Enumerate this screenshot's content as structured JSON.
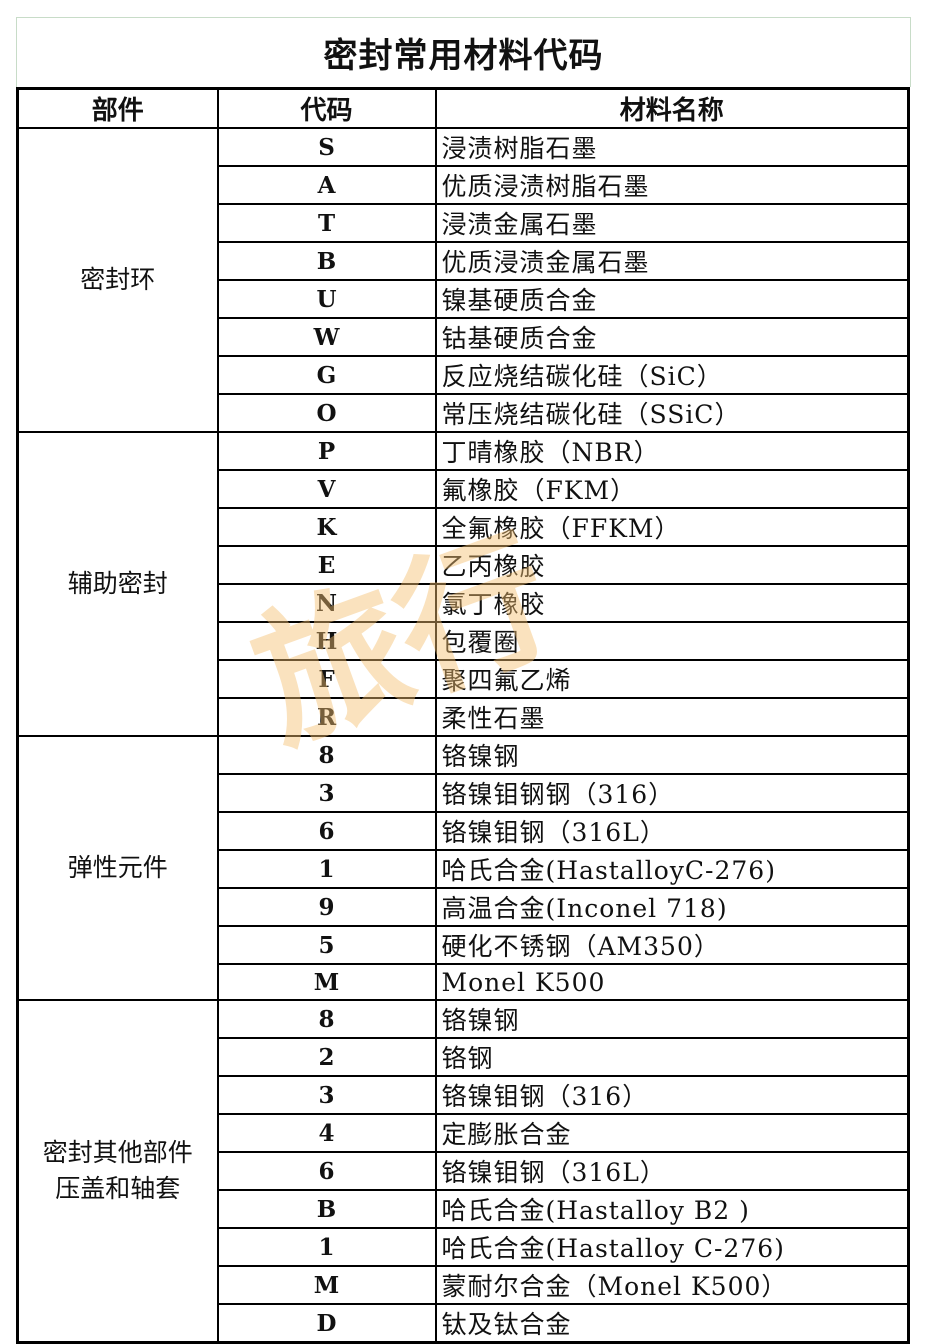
{
  "title": "密封常用材料代码",
  "headers": [
    "部件",
    "代码",
    "材料名称"
  ],
  "groups": [
    {
      "part": "密封环",
      "rows": [
        [
          "S",
          "浸渍树脂石墨"
        ],
        [
          "A",
          "优质浸渍树脂石墨"
        ],
        [
          "T",
          "浸渍金属石墨"
        ],
        [
          "B",
          "优质浸渍金属石墨"
        ],
        [
          "U",
          "镍基硬质合金"
        ],
        [
          "W",
          "钴基硬质合金"
        ],
        [
          "G",
          "反应烧结碳化硅（SiC）"
        ],
        [
          "O",
          "常压烧结碳化硅（SSiC）"
        ]
      ]
    },
    {
      "part": "辅助密封",
      "rows": [
        [
          "P",
          "丁晴橡胶（NBR）"
        ],
        [
          "V",
          "氟橡胶（FKM）"
        ],
        [
          "K",
          "全氟橡胶（FFKM）"
        ],
        [
          "E",
          "乙丙橡胶"
        ],
        [
          "N",
          "氯丁橡胶"
        ],
        [
          "H",
          "包覆圈"
        ],
        [
          "F",
          "聚四氟乙烯"
        ],
        [
          "R",
          "柔性石墨"
        ]
      ]
    },
    {
      "part": "弹性元件",
      "rows": [
        [
          "8",
          "铬镍钢"
        ],
        [
          "3",
          "铬镍钼钢钢（316）"
        ],
        [
          "6",
          "铬镍钼钢（316L）"
        ],
        [
          "1",
          "哈氏合金(HastalloyC-276)"
        ],
        [
          "9",
          "高温合金(Inconel 718)"
        ],
        [
          "5",
          "硬化不锈钢（AM350）"
        ],
        [
          "M",
          "Monel K500"
        ]
      ]
    },
    {
      "part": "密封其他部件\n压盖和轴套",
      "rows": [
        [
          "8",
          "铬镍钢"
        ],
        [
          "2",
          "铬钢"
        ],
        [
          "3",
          "铬镍钼钢（316）"
        ],
        [
          "4",
          "定膨胀合金"
        ],
        [
          "6",
          "铬镍钼钢（316L）"
        ],
        [
          "B",
          "哈氏合金(Hastalloy B2 )"
        ],
        [
          "1",
          "哈氏合金(Hastalloy C-276)"
        ],
        [
          "M",
          "蒙耐尔合金（Monel K500）"
        ],
        [
          "D",
          "钛及钛合金"
        ]
      ]
    }
  ],
  "watermark": "旅行"
}
